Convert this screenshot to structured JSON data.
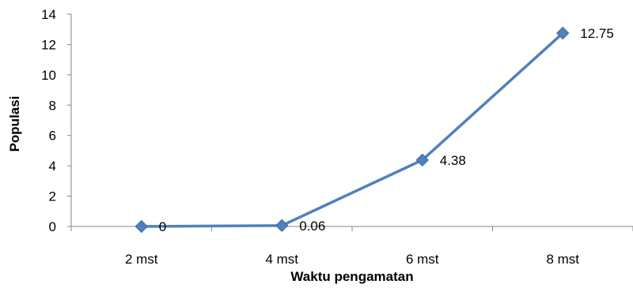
{
  "chart_data": {
    "type": "line",
    "title": "",
    "xlabel": "Waktu pengamatan",
    "ylabel": "Populasi",
    "categories": [
      "2 mst",
      "4 mst",
      "6 mst",
      "8 mst"
    ],
    "series": [
      {
        "values": [
          0,
          0.06,
          4.38,
          12.75
        ],
        "data_labels": [
          "0",
          "0.06",
          "4.38",
          "12.75"
        ],
        "color": "#4F81BD",
        "marker": "diamond"
      }
    ],
    "ylim": [
      0,
      14
    ],
    "yticks": [
      "0",
      "2",
      "4",
      "6",
      "8",
      "10",
      "12",
      "14"
    ],
    "grid": false,
    "legend": "none"
  }
}
